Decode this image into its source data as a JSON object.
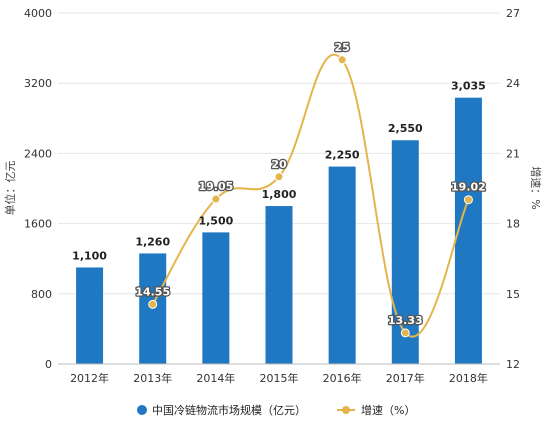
{
  "chart_data": {
    "type": "bar",
    "categories": [
      "2012年",
      "2013年",
      "2014年",
      "2015年",
      "2016年",
      "2017年",
      "2018年"
    ],
    "series": [
      {
        "name": "中国冷链物流市场规模（亿元）",
        "type": "bar",
        "axis": "left",
        "color": "#1f78c1",
        "values": [
          1100,
          1260,
          1500,
          1800,
          2250,
          2550,
          3035
        ],
        "labels": [
          "1,100",
          "1,260",
          "1,500",
          "1,800",
          "2,250",
          "2,550",
          "3,035"
        ]
      },
      {
        "name": "增速（%）",
        "type": "line",
        "axis": "right",
        "color": "#e3b54a",
        "values": [
          null,
          14.55,
          19.05,
          20,
          25,
          13.33,
          19.02
        ],
        "labels": [
          "",
          "14.55",
          "19.05",
          "20",
          "25",
          "13.33",
          "19.02"
        ]
      }
    ],
    "ylabel": "单位：亿元",
    "ylabel_right": "增速：%",
    "ylim": [
      0,
      4000
    ],
    "ylim_right": [
      12,
      27
    ],
    "yticks": [
      "0",
      "800",
      "1600",
      "2400",
      "3200",
      "4000"
    ],
    "yticks_right": [
      "12",
      "15",
      "18",
      "21",
      "24",
      "27"
    ],
    "grid": true,
    "legend_position": "bottom"
  }
}
